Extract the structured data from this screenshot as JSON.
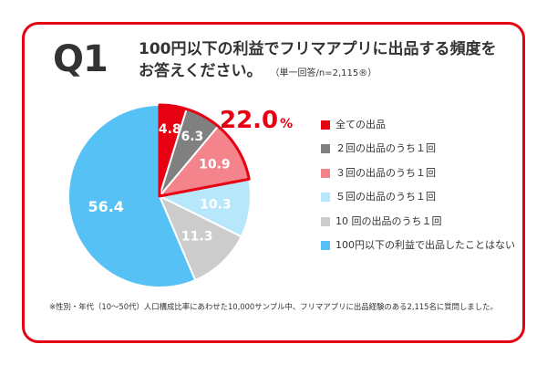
{
  "header": {
    "q_label": "Q1",
    "question_line1": "100円以下の利益でフリマアプリに出品する頻度を",
    "question_line2": "お答えください。",
    "sample_note": "（単一回答/n=2,115®）"
  },
  "highlight": {
    "value": "22.0",
    "unit": "%"
  },
  "footnote": "※性別・年代（10〜50代）人口構成比率にあわせた10,000サンプル中、フリマアプリに出品経験のある2,115名に質問しました。",
  "chart_data": {
    "type": "pie",
    "series": [
      {
        "name": "全ての出品",
        "value": 4.8,
        "label": "4.8",
        "color": "#e60012",
        "label_color": "#ffffff"
      },
      {
        "name": "２回の出品のうち１回",
        "value": 6.3,
        "label": "6.3",
        "color": "#808080",
        "label_color": "#ffffff"
      },
      {
        "name": "３回の出品のうち１回",
        "value": 10.9,
        "label": "10.9",
        "color": "#f4848b",
        "label_color": "#ffffff"
      },
      {
        "name": "５回の出品のうち１回",
        "value": 10.3,
        "label": "10.3",
        "color": "#b7e7fb",
        "label_color": "#ffffff"
      },
      {
        "name": "10 回の出品のうち１回",
        "value": 11.3,
        "label": "11.3",
        "color": "#cccccc",
        "label_color": "#ffffff"
      },
      {
        "name": "100円以下の利益で出品したことはない",
        "value": 56.4,
        "label": "56.4",
        "color": "#55c1f4",
        "label_color": "#ffffff"
      }
    ],
    "highlight_color": "#e60012",
    "legend_position": "right"
  }
}
